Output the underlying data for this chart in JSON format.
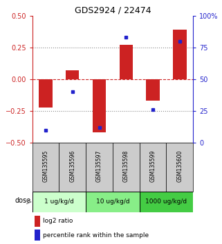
{
  "title": "GDS2924 / 22474",
  "samples": [
    "GSM135595",
    "GSM135596",
    "GSM135597",
    "GSM135598",
    "GSM135599",
    "GSM135600"
  ],
  "log2_ratio": [
    -0.22,
    0.07,
    -0.42,
    0.27,
    -0.17,
    0.39
  ],
  "percentile_rank": [
    10,
    40,
    12,
    83,
    26,
    80
  ],
  "ylim_left": [
    -0.5,
    0.5
  ],
  "ylim_right": [
    0,
    100
  ],
  "yticks_left": [
    -0.5,
    -0.25,
    0.0,
    0.25,
    0.5
  ],
  "yticks_right": [
    0,
    25,
    50,
    75,
    100
  ],
  "hlines_dotted": [
    -0.25,
    0.25
  ],
  "hline_dashed": 0.0,
  "dose_groups": [
    {
      "label": "1 ug/kg/d",
      "samples": [
        0,
        1
      ],
      "color": "#ccffcc"
    },
    {
      "label": "10 ug/kg/d",
      "samples": [
        2,
        3
      ],
      "color": "#88ee88"
    },
    {
      "label": "1000 ug/kg/d",
      "samples": [
        4,
        5
      ],
      "color": "#44cc44"
    }
  ],
  "bar_color": "#cc2222",
  "dot_color": "#2222cc",
  "sample_bg_color": "#cccccc",
  "zero_line_color": "#cc2222",
  "dotted_line_color": "#888888",
  "left_axis_color": "#cc2222",
  "right_axis_color": "#2222cc",
  "dose_label": "dose",
  "legend_bar_label": "log2 ratio",
  "legend_dot_label": "percentile rank within the sample",
  "bar_width": 0.5
}
